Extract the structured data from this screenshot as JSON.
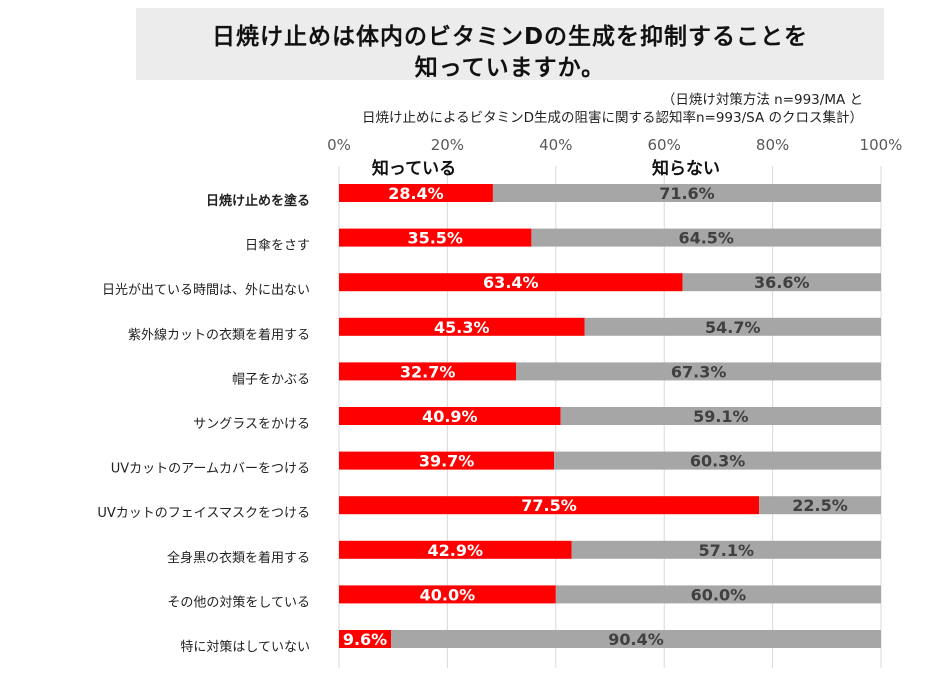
{
  "title": {
    "line1": "日焼け止めは体内のビタミンDの生成を抑制することを",
    "line2": "知っていますか。"
  },
  "note": {
    "line1": "（日焼け対策方法 n=993/MA と",
    "line2": "日焼け止めによるビタミンD生成の阻害に関する認知率n=993/SA のクロス集計）"
  },
  "colors": {
    "know": "#ff0000",
    "dont_know": "#a6a6a6",
    "know_label": "#ffffff",
    "dont_know_label": "#404040",
    "axis_text": "#595959",
    "grid": "#d9d9d9"
  },
  "chart_data": {
    "type": "bar",
    "orientation": "horizontal",
    "stacked": "100%",
    "categories": [
      "日焼け止めを塗る",
      "日傘をさす",
      "日光が出ている時間は、外に出ない",
      "紫外線カットの衣類を着用する",
      "帽子をかぶる",
      "サングラスをかける",
      "UVカットのアームカバーをつける",
      "UVカットのフェイスマスクをつける",
      "全身黒の衣類を着用する",
      "その他の対策をしている",
      "特に対策はしていない"
    ],
    "series": [
      {
        "name": "知っている",
        "values": [
          28.4,
          35.5,
          63.4,
          45.3,
          32.7,
          40.9,
          39.7,
          77.5,
          42.9,
          40.0,
          9.6
        ]
      },
      {
        "name": "知らない",
        "values": [
          71.6,
          64.5,
          36.6,
          54.7,
          67.3,
          59.1,
          60.3,
          22.5,
          57.1,
          60.0,
          90.4
        ]
      }
    ],
    "xticks": [
      "0%",
      "20%",
      "40%",
      "60%",
      "80%",
      "100%"
    ],
    "xlim": [
      0,
      100
    ],
    "xlabel": "",
    "ylabel": "",
    "bold_category": "日焼け止めを塗る",
    "legend_placement": "top"
  }
}
